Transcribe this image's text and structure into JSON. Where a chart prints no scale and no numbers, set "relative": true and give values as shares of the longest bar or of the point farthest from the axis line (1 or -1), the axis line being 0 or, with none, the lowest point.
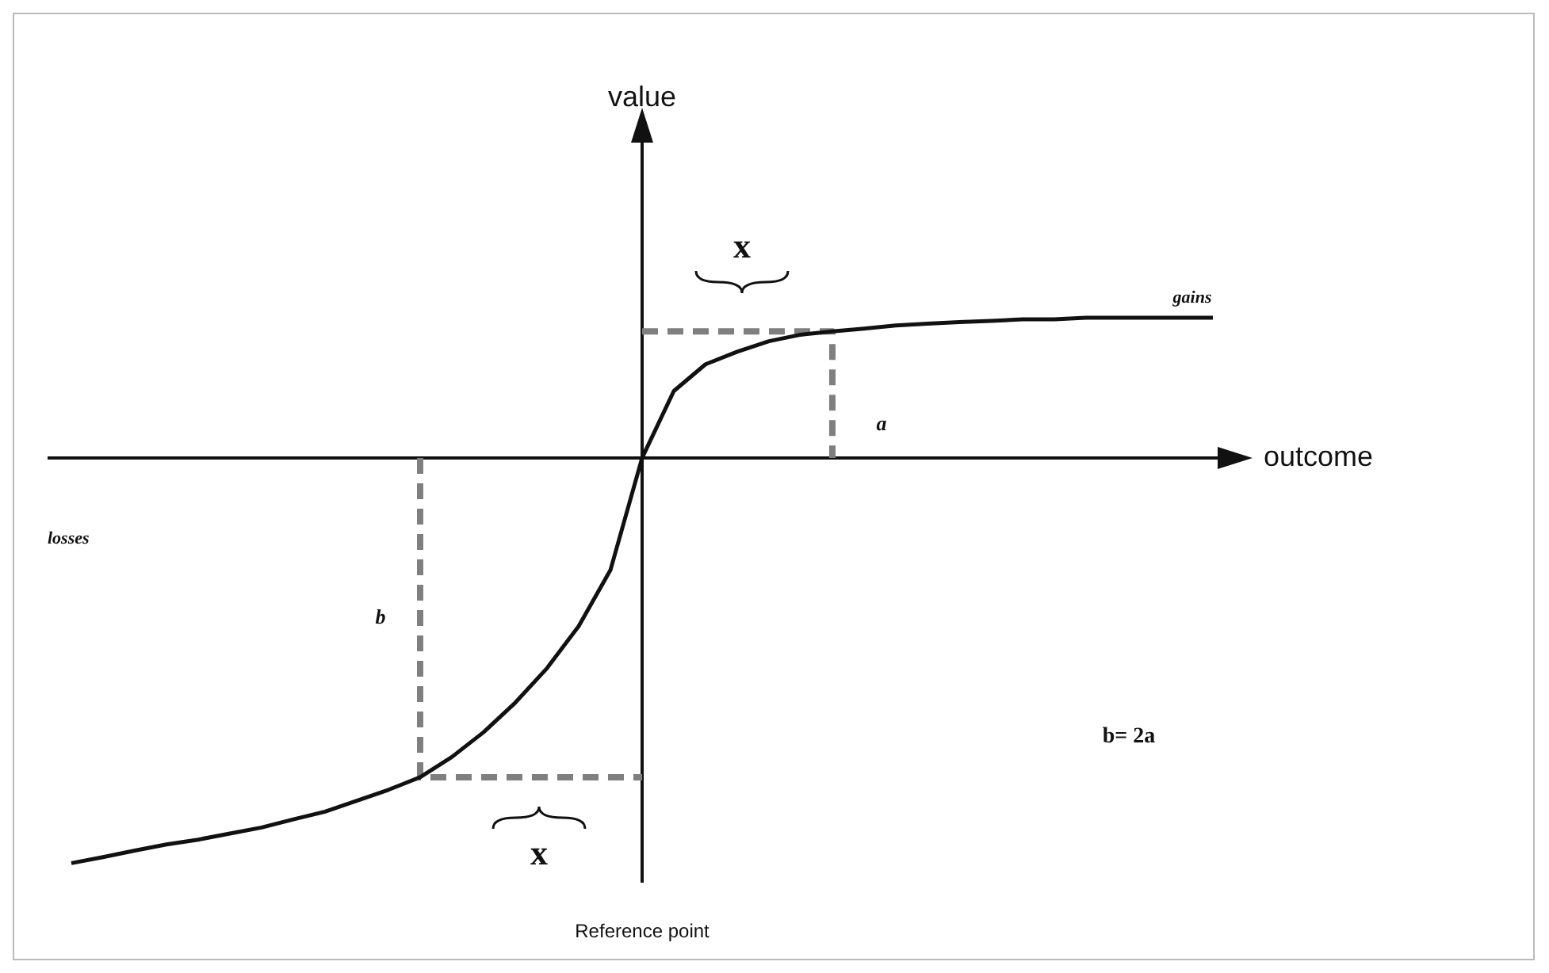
{
  "chart_data": {
    "type": "line",
    "relative": true,
    "xlabel": "outcome",
    "legend": false,
    "marker": "none",
    "categories": [
      null,
      null,
      null,
      null,
      null,
      null,
      null,
      null,
      null,
      null,
      null,
      null,
      null,
      null,
      null,
      null,
      null,
      null,
      null,
      null,
      null,
      null,
      null,
      null,
      null,
      null,
      null,
      null,
      null,
      null,
      null,
      null,
      null,
      null,
      null,
      null,
      null
    ],
    "series": [
      {
        "type": "line",
        "color": "#111111",
        "line_style": "solid",
        "values": [
          -1.0,
          -0.985,
          -0.969,
          -0.954,
          -0.942,
          -0.927,
          -0.912,
          -0.892,
          -0.873,
          -0.846,
          -0.819,
          -0.788,
          -0.738,
          -0.677,
          -0.604,
          -0.519,
          -0.415,
          -0.277,
          0,
          0.165,
          0.231,
          0.262,
          0.288,
          0.304,
          0.312,
          0.319,
          0.327,
          0.331,
          0.335,
          0.338,
          0.342,
          0.342,
          0.346,
          0.346,
          0.346,
          0.346,
          0.346
        ]
      },
      {
        "type": "step",
        "color": "#7f7f7f",
        "line_style": "dashed",
        "values": [
          null,
          null,
          null,
          null,
          null,
          null,
          null,
          null,
          null,
          null,
          null,
          null,
          null,
          null,
          null,
          null,
          null,
          null,
          0.312,
          null,
          null,
          null,
          null,
          null,
          0,
          null,
          null,
          null,
          null,
          null,
          null,
          null,
          null,
          null,
          null,
          null,
          null
        ]
      },
      {
        "type": "step",
        "color": "#7f7f7f",
        "line_style": "dashed",
        "values": [
          null,
          null,
          null,
          null,
          null,
          null,
          null,
          null,
          null,
          null,
          null,
          0,
          null,
          null,
          null,
          null,
          null,
          null,
          -0.788,
          null,
          null,
          null,
          null,
          null,
          null,
          null,
          null,
          null,
          null,
          null,
          null,
          null,
          null,
          null,
          null,
          null,
          null
        ]
      }
    ],
    "annotations": [
      "gains",
      "losses",
      "a",
      "b",
      "x",
      "x",
      "b= 2a",
      "Reference point",
      "value"
    ]
  }
}
